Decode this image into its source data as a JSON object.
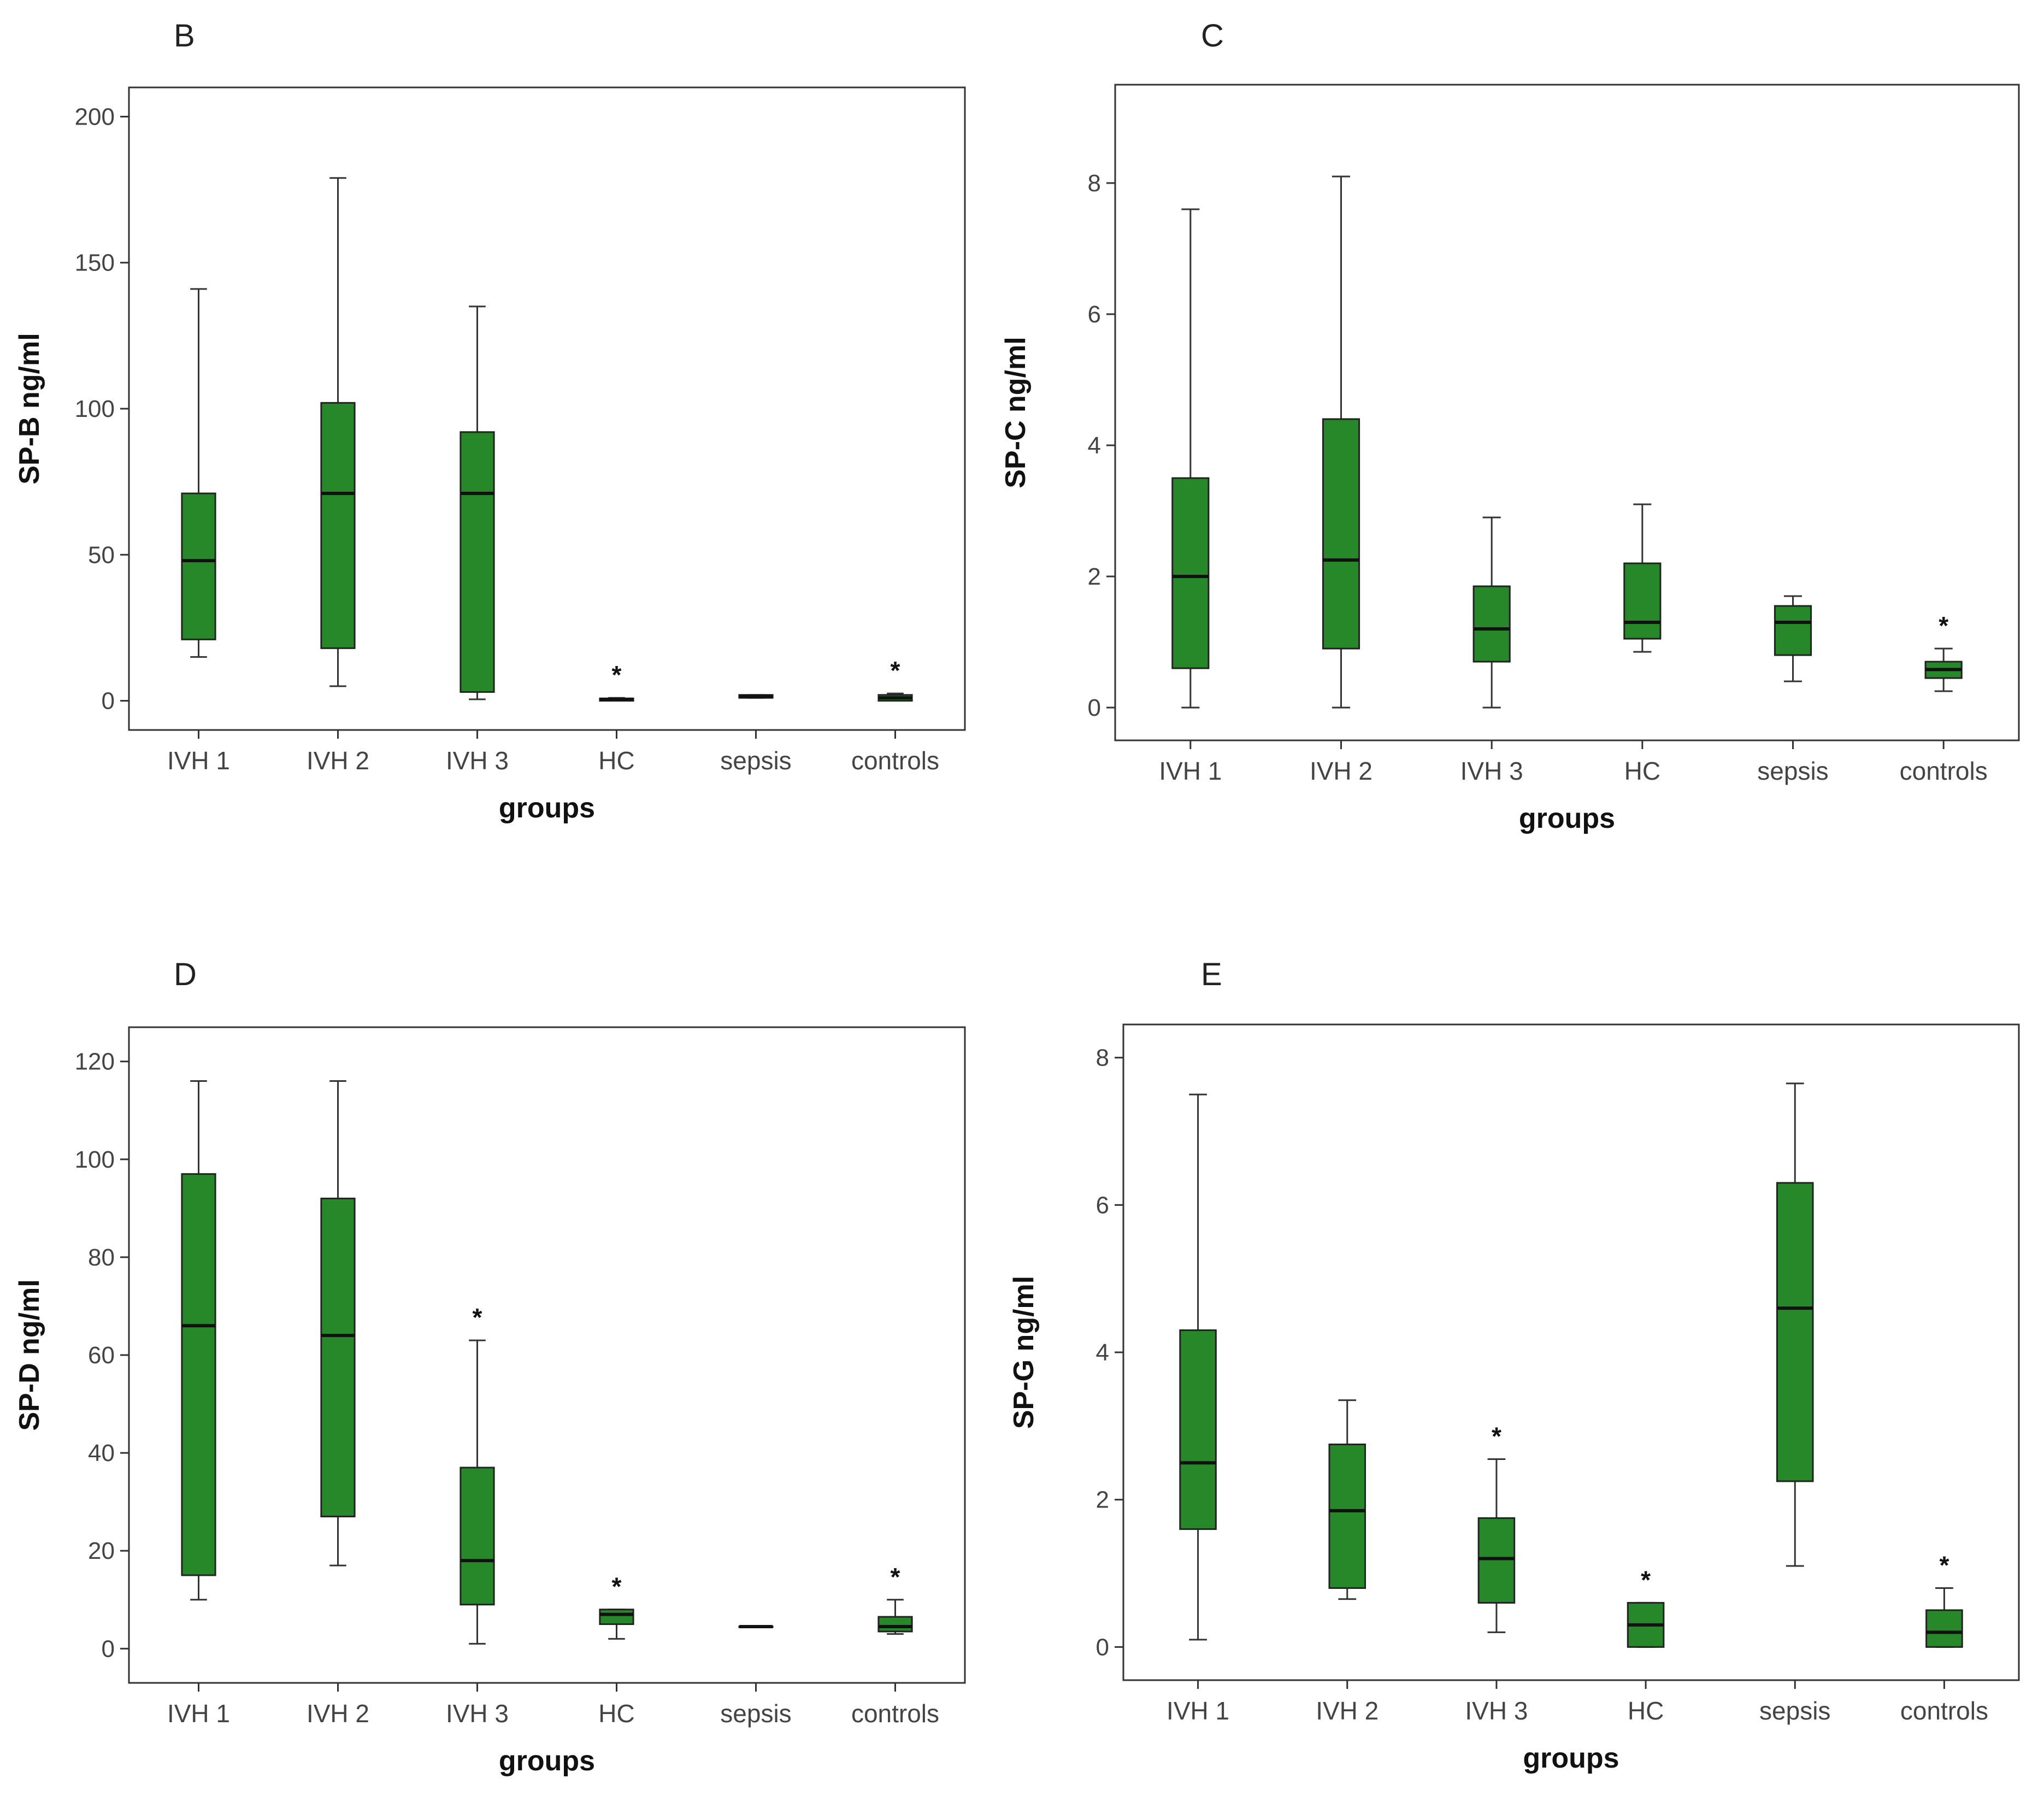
{
  "chart_data": [
    {
      "panel": "B",
      "type": "boxplot",
      "xlabel": "groups",
      "ylabel": "SP-B ng/ml",
      "ylim": [
        -10,
        210
      ],
      "yticks": [
        0,
        50,
        100,
        150,
        200
      ],
      "categories": [
        "IVH 1",
        "IVH 2",
        "IVH 3",
        "HC",
        "sepsis",
        "controls"
      ],
      "boxes": [
        {
          "min": 15,
          "q1": 21,
          "median": 48,
          "q3": 71,
          "max": 141,
          "star": false
        },
        {
          "min": 5,
          "q1": 18,
          "median": 71,
          "q3": 102,
          "max": 179,
          "star": false
        },
        {
          "min": 0.5,
          "q1": 3,
          "median": 71,
          "q3": 92,
          "max": 135,
          "star": false
        },
        {
          "min": 0,
          "q1": 0,
          "median": 0.5,
          "q3": 0.8,
          "max": 1,
          "star": true
        },
        {
          "min": 1,
          "q1": 1,
          "median": 1.5,
          "q3": 2,
          "max": 2,
          "star": false
        },
        {
          "min": 0,
          "q1": 0,
          "median": 1,
          "q3": 2,
          "max": 2.5,
          "star": true
        }
      ],
      "star_symbol": "*",
      "box_color": "#27882a"
    },
    {
      "panel": "C",
      "type": "boxplot",
      "xlabel": "groups",
      "ylabel": "SP-C ng/ml",
      "ylim": [
        -0.5,
        9.5
      ],
      "yticks": [
        0,
        2,
        4,
        6,
        8
      ],
      "categories": [
        "IVH 1",
        "IVH 2",
        "IVH 3",
        "HC",
        "sepsis",
        "controls"
      ],
      "boxes": [
        {
          "min": 0,
          "q1": 0.6,
          "median": 2.0,
          "q3": 3.5,
          "max": 7.6,
          "star": false
        },
        {
          "min": 0,
          "q1": 0.9,
          "median": 2.25,
          "q3": 4.4,
          "max": 8.1,
          "star": false
        },
        {
          "min": 0,
          "q1": 0.7,
          "median": 1.2,
          "q3": 1.85,
          "max": 2.9,
          "star": false
        },
        {
          "min": 0.85,
          "q1": 1.05,
          "median": 1.3,
          "q3": 2.2,
          "max": 3.1,
          "star": false
        },
        {
          "min": 0.4,
          "q1": 0.8,
          "median": 1.3,
          "q3": 1.55,
          "max": 1.7,
          "star": false
        },
        {
          "min": 0.25,
          "q1": 0.45,
          "median": 0.58,
          "q3": 0.7,
          "max": 0.9,
          "star": true
        }
      ],
      "star_symbol": "*",
      "box_color": "#27882a"
    },
    {
      "panel": "D",
      "type": "boxplot",
      "xlabel": "groups",
      "ylabel": "SP-D ng/ml",
      "ylim": [
        -7,
        127
      ],
      "yticks": [
        0,
        20,
        40,
        60,
        80,
        100,
        120
      ],
      "categories": [
        "IVH 1",
        "IVH 2",
        "IVH 3",
        "HC",
        "sepsis",
        "controls"
      ],
      "boxes": [
        {
          "min": 10,
          "q1": 15,
          "median": 66,
          "q3": 97,
          "max": 116,
          "star": false
        },
        {
          "min": 17,
          "q1": 27,
          "median": 64,
          "q3": 92,
          "max": 116,
          "star": false
        },
        {
          "min": 1,
          "q1": 9,
          "median": 18,
          "q3": 37,
          "max": 63,
          "star": true
        },
        {
          "min": 2,
          "q1": 5,
          "median": 7,
          "q3": 8,
          "max": 8,
          "star": true
        },
        {
          "min": 4.5,
          "q1": 4.5,
          "median": 4.5,
          "q3": 4.5,
          "max": 4.5,
          "star": false
        },
        {
          "min": 3,
          "q1": 3.5,
          "median": 4.5,
          "q3": 6.5,
          "max": 10,
          "star": true
        }
      ],
      "star_symbol": "*",
      "box_color": "#27882a"
    },
    {
      "panel": "E",
      "type": "boxplot",
      "xlabel": "groups",
      "ylabel": "SP-G ng/ml",
      "ylim": [
        -0.45,
        8.45
      ],
      "yticks": [
        0,
        2,
        4,
        6,
        8
      ],
      "categories": [
        "IVH 1",
        "IVH 2",
        "IVH 3",
        "HC",
        "sepsis",
        "controls"
      ],
      "boxes": [
        {
          "min": 0.1,
          "q1": 1.6,
          "median": 2.5,
          "q3": 4.3,
          "max": 7.5,
          "star": false
        },
        {
          "min": 0.65,
          "q1": 0.8,
          "median": 1.85,
          "q3": 2.75,
          "max": 3.35,
          "star": false
        },
        {
          "min": 0.2,
          "q1": 0.6,
          "median": 1.2,
          "q3": 1.75,
          "max": 2.55,
          "star": true
        },
        {
          "min": 0,
          "q1": 0,
          "median": 0.3,
          "q3": 0.6,
          "max": 0.6,
          "star": true
        },
        {
          "min": 1.1,
          "q1": 2.25,
          "median": 4.6,
          "q3": 6.3,
          "max": 7.65,
          "star": false
        },
        {
          "min": 0,
          "q1": 0,
          "median": 0.2,
          "q3": 0.5,
          "max": 0.8,
          "star": true
        }
      ],
      "star_symbol": "*",
      "box_color": "#27882a"
    }
  ]
}
